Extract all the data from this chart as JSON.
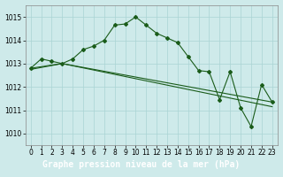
{
  "background_color": "#ceeaea",
  "label_bar_color": "#3d8c3d",
  "grid_color": "#aad4d4",
  "line_color": "#1a5c1a",
  "title": "Graphe pression niveau de la mer (hPa)",
  "title_fontsize": 7.5,
  "ylim": [
    1009.5,
    1015.5
  ],
  "xlim": [
    -0.5,
    23.5
  ],
  "yticks": [
    1010,
    1011,
    1012,
    1013,
    1014,
    1015
  ],
  "xticks": [
    0,
    1,
    2,
    3,
    4,
    5,
    6,
    7,
    8,
    9,
    10,
    11,
    12,
    13,
    14,
    15,
    16,
    17,
    18,
    19,
    20,
    21,
    22,
    23
  ],
  "series1_x": [
    0,
    1,
    2,
    3,
    4,
    5,
    6,
    7,
    8,
    9,
    10,
    11,
    12,
    13,
    14,
    15,
    16,
    17,
    18,
    19,
    20,
    21,
    22,
    23
  ],
  "series1_y": [
    1012.8,
    1013.2,
    1013.1,
    1013.0,
    1013.2,
    1013.6,
    1013.75,
    1014.0,
    1014.65,
    1014.7,
    1015.0,
    1014.65,
    1014.3,
    1014.1,
    1013.9,
    1013.3,
    1012.7,
    1012.65,
    1011.45,
    1012.65,
    1011.1,
    1010.3,
    1012.1,
    1011.35
  ],
  "series2_x": [
    0,
    3,
    23
  ],
  "series2_y": [
    1012.8,
    1013.0,
    1011.35
  ],
  "series3_x": [
    0,
    3,
    23
  ],
  "series3_y": [
    1012.75,
    1013.0,
    1011.15
  ]
}
